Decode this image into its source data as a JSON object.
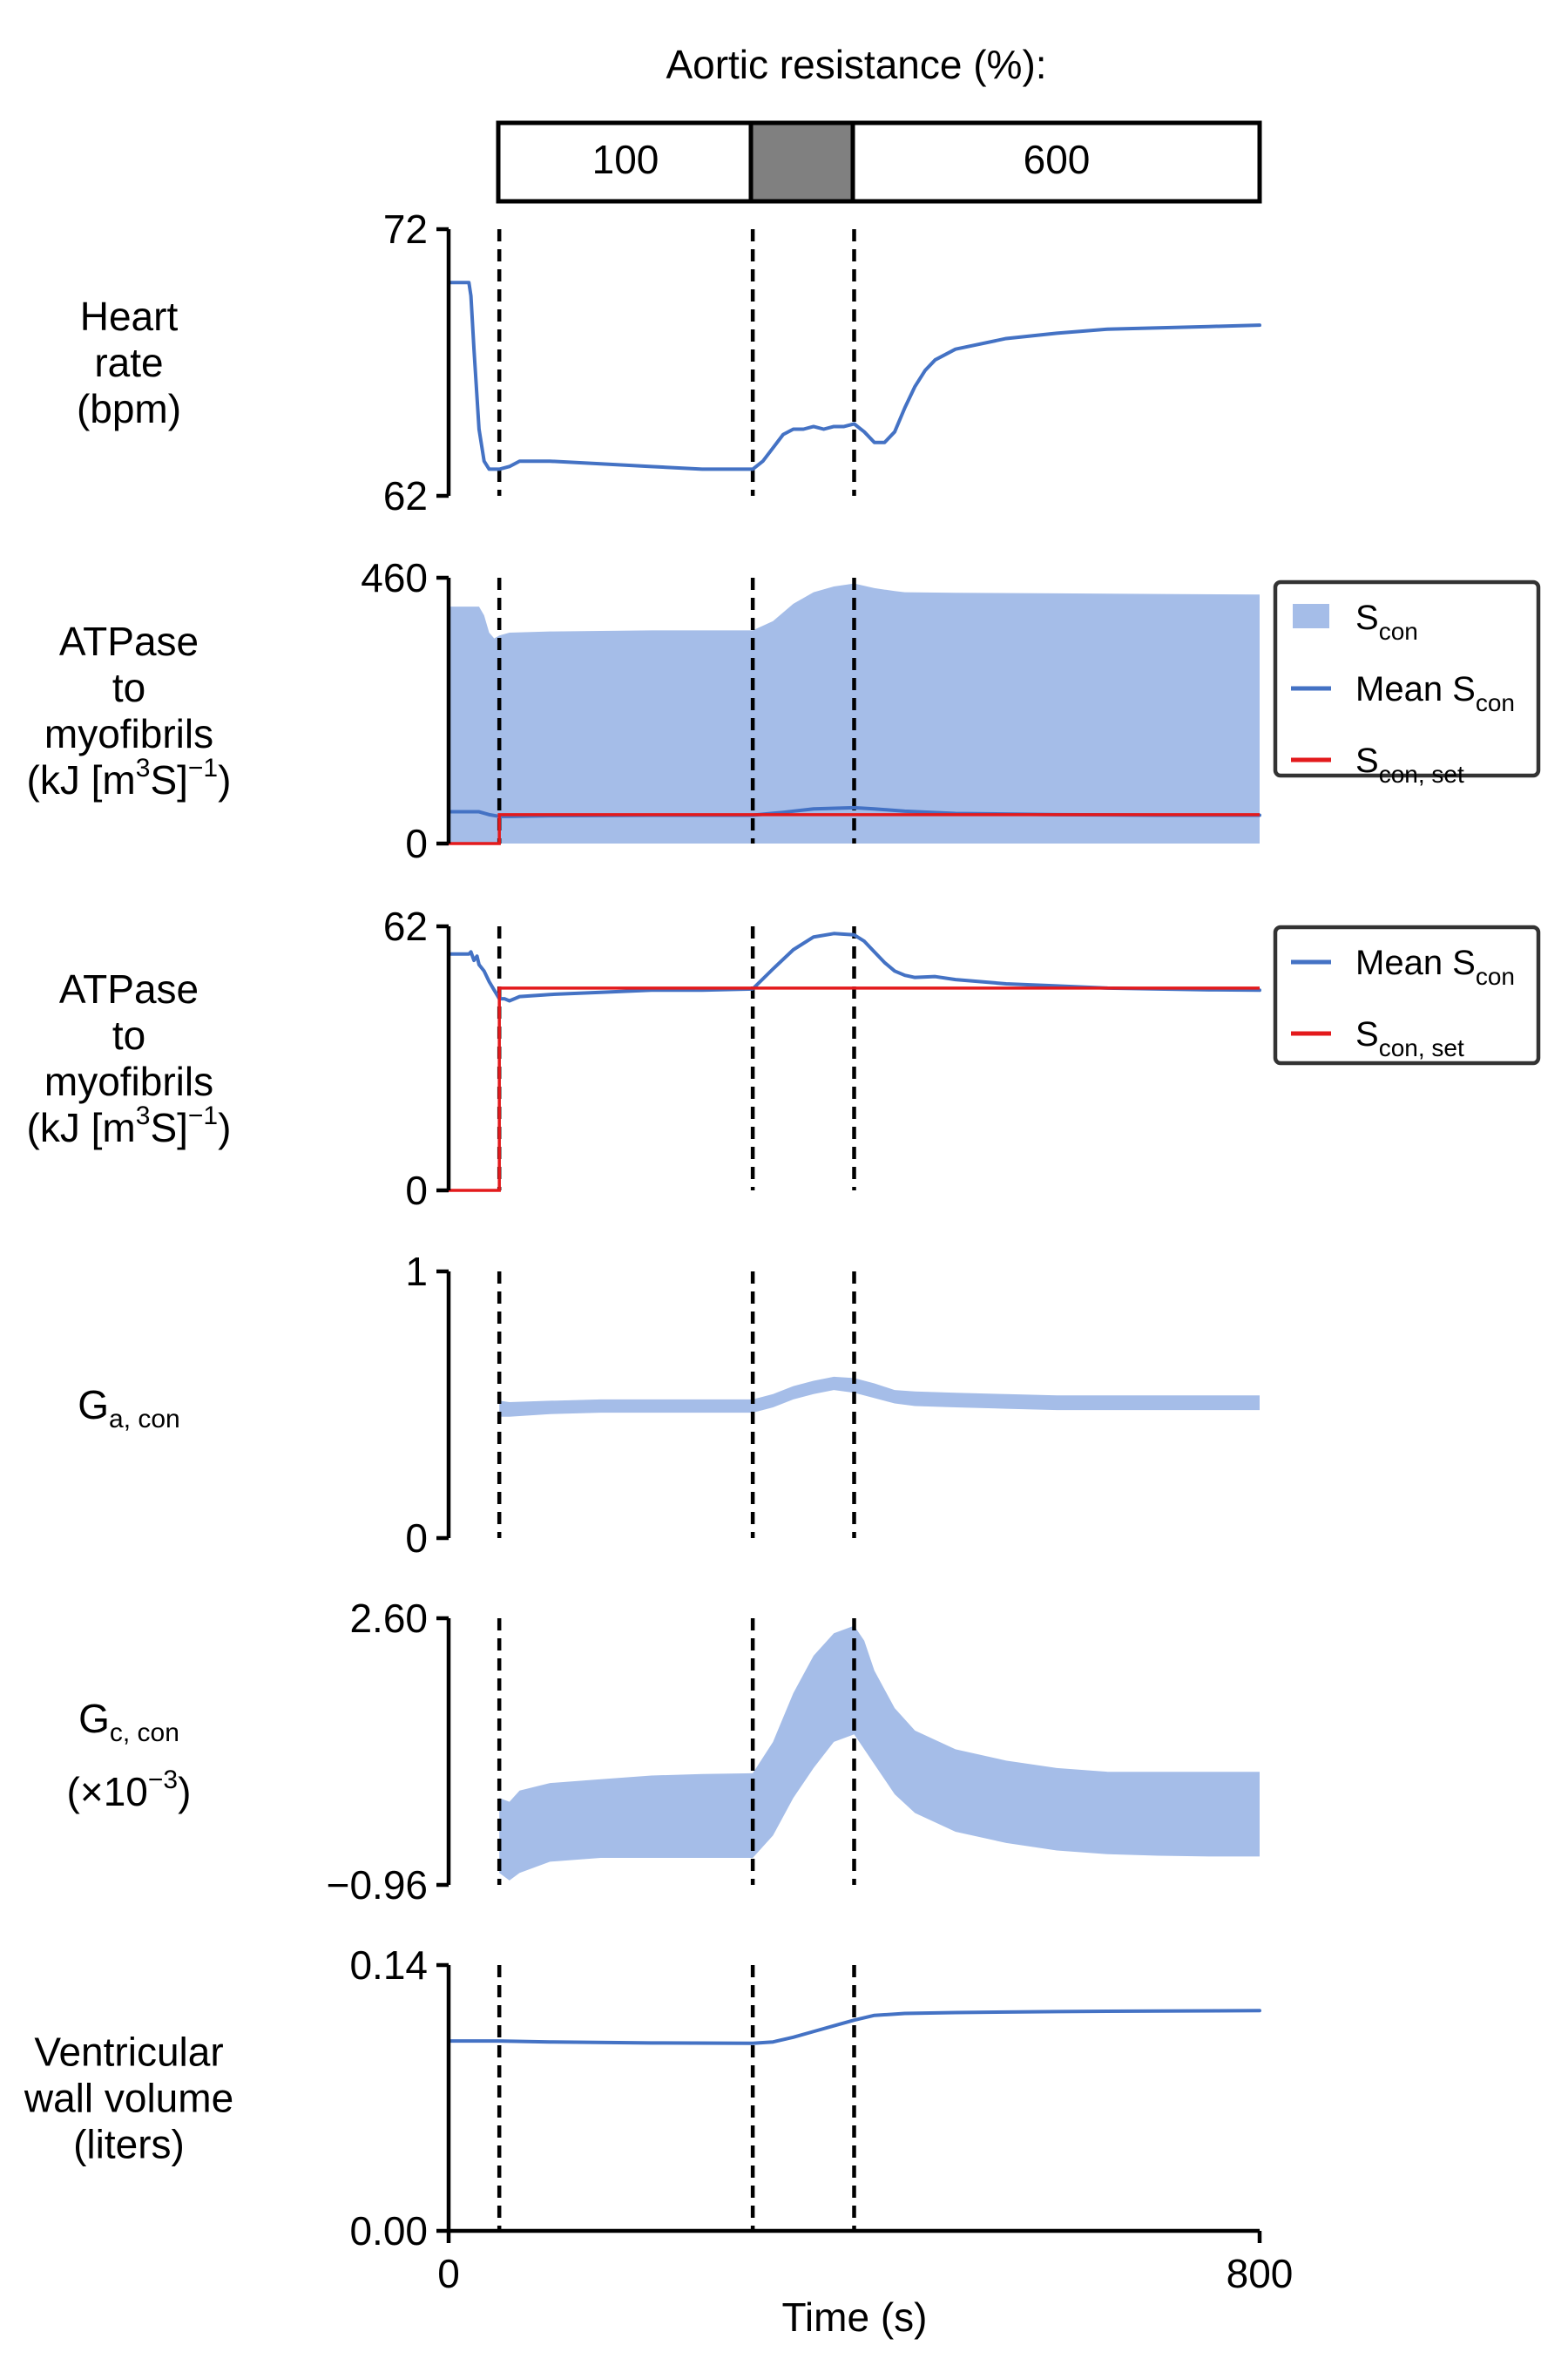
{
  "header": {
    "title": "Aortic resistance (%):",
    "segments": [
      "100",
      "",
      "600"
    ]
  },
  "x_axis": {
    "label": "Time (s)",
    "min": 0,
    "max": 800,
    "ticks": [
      "0",
      "800"
    ]
  },
  "events": [
    50,
    300,
    400
  ],
  "legend_items": {
    "band": "S",
    "band_sub": "con",
    "mean": "Mean S",
    "mean_sub": "con",
    "set": "S",
    "set_sub": "con, set"
  },
  "colors": {
    "band": "#a5bde8",
    "line": "#4472c4",
    "set": "#e31a1c",
    "event": "#000000"
  },
  "chart_data": [
    {
      "type": "line",
      "ylabel": [
        "Heart",
        "rate",
        "(bpm)"
      ],
      "ylim": [
        62,
        72
      ],
      "yticks": [
        "72",
        "62"
      ],
      "series": [
        {
          "kind": "line",
          "x": [
            0,
            20,
            22,
            25,
            30,
            35,
            40,
            50,
            60,
            70,
            100,
            150,
            200,
            250,
            300,
            310,
            320,
            330,
            340,
            350,
            360,
            370,
            380,
            390,
            400,
            410,
            420,
            430,
            440,
            450,
            460,
            470,
            480,
            500,
            550,
            600,
            650,
            700,
            750,
            800
          ],
          "y": [
            70.0,
            70.0,
            69.5,
            67.5,
            64.5,
            63.3,
            63.0,
            63.0,
            63.1,
            63.3,
            63.3,
            63.2,
            63.1,
            63.0,
            63.0,
            63.3,
            63.8,
            64.3,
            64.5,
            64.5,
            64.6,
            64.5,
            64.6,
            64.6,
            64.7,
            64.4,
            64.0,
            64.0,
            64.4,
            65.3,
            66.1,
            66.7,
            67.1,
            67.5,
            67.9,
            68.1,
            68.25,
            68.3,
            68.35,
            68.4
          ]
        }
      ]
    },
    {
      "type": "area",
      "ylabel": [
        "ATPase",
        "to",
        "myofibrils",
        "(kJ [m3S]−1)"
      ],
      "ylim": [
        0,
        460
      ],
      "yticks": [
        "460",
        "0"
      ],
      "series": [
        {
          "name": "S_con",
          "kind": "band",
          "x": [
            0,
            30,
            35,
            40,
            45,
            50,
            60,
            100,
            150,
            200,
            250,
            300,
            320,
            340,
            360,
            380,
            400,
            420,
            440,
            450,
            500,
            600,
            700,
            800
          ],
          "upper": [
            410,
            410,
            395,
            365,
            355,
            360,
            365,
            367,
            368,
            369,
            369,
            369,
            385,
            415,
            435,
            445,
            450,
            442,
            437,
            435,
            434,
            433,
            432,
            431
          ],
          "lower": [
            0,
            0,
            0,
            0,
            0,
            0,
            0,
            0,
            0,
            0,
            0,
            0,
            0,
            0,
            0,
            0,
            0,
            0,
            0,
            0,
            0,
            0,
            0,
            0
          ]
        },
        {
          "name": "Mean S_con",
          "kind": "line",
          "x": [
            0,
            30,
            40,
            50,
            60,
            100,
            200,
            300,
            330,
            360,
            400,
            420,
            450,
            500,
            600,
            700,
            800
          ],
          "y": [
            55,
            55,
            50,
            47,
            47,
            48,
            49,
            49,
            54,
            60,
            62,
            60,
            56,
            52,
            50,
            49,
            49
          ]
        },
        {
          "name": "S_con,set",
          "kind": "step",
          "x": [
            0,
            50,
            50,
            800
          ],
          "y": [
            0,
            0,
            50,
            50
          ]
        }
      ]
    },
    {
      "type": "line",
      "ylabel": [
        "ATPase",
        "to",
        "myofibrils",
        "(kJ [m3S]−1)"
      ],
      "ylim": [
        0,
        62
      ],
      "yticks": [
        "62",
        "0"
      ],
      "series": [
        {
          "name": "Mean S_con",
          "kind": "line",
          "width": 4,
          "x": [
            0,
            15,
            20,
            22,
            25,
            28,
            30,
            35,
            40,
            45,
            50,
            55,
            60,
            70,
            100,
            150,
            200,
            250,
            300,
            320,
            340,
            360,
            380,
            400,
            410,
            420,
            430,
            440,
            450,
            460,
            480,
            500,
            550,
            600,
            650,
            700,
            750,
            800
          ],
          "y": [
            55.5,
            55.5,
            55.5,
            56,
            54,
            55,
            53,
            51.5,
            49,
            47,
            45,
            45,
            44.5,
            45.5,
            46,
            46.5,
            47,
            47,
            47.3,
            52,
            56.5,
            59.5,
            60.3,
            60,
            58.5,
            56,
            53.5,
            51.5,
            50.5,
            50,
            50.2,
            49.5,
            48.5,
            48,
            47.5,
            47.3,
            47.1,
            47
          ]
        },
        {
          "name": "S_con,set",
          "kind": "step",
          "x": [
            0,
            50,
            50,
            800
          ],
          "y": [
            0,
            0,
            47.5,
            47.5
          ]
        }
      ]
    },
    {
      "type": "area",
      "ylabel": [
        "G",
        "a, con"
      ],
      "ylim": [
        0,
        1
      ],
      "yticks": [
        "1",
        "0"
      ],
      "series": [
        {
          "kind": "band",
          "x": [
            50,
            60,
            100,
            150,
            200,
            250,
            300,
            320,
            340,
            360,
            380,
            400,
            420,
            440,
            460,
            500,
            550,
            600,
            700,
            800
          ],
          "upper": [
            0.515,
            0.51,
            0.515,
            0.52,
            0.52,
            0.52,
            0.52,
            0.54,
            0.57,
            0.59,
            0.605,
            0.6,
            0.58,
            0.555,
            0.55,
            0.545,
            0.54,
            0.535,
            0.535,
            0.535
          ],
          "lower": [
            0.455,
            0.455,
            0.465,
            0.47,
            0.47,
            0.47,
            0.47,
            0.49,
            0.52,
            0.54,
            0.555,
            0.545,
            0.525,
            0.505,
            0.495,
            0.49,
            0.485,
            0.48,
            0.48,
            0.48
          ]
        }
      ]
    },
    {
      "type": "area",
      "ylabel": [
        "G",
        "c, con",
        "(×10−3)"
      ],
      "ylim": [
        -0.96,
        2.6
      ],
      "yticks": [
        "2.60",
        "−0.96"
      ],
      "series": [
        {
          "kind": "band",
          "x": [
            50,
            60,
            70,
            100,
            150,
            200,
            250,
            300,
            320,
            340,
            360,
            380,
            400,
            410,
            420,
            440,
            460,
            500,
            550,
            600,
            650,
            700,
            750,
            800
          ],
          "upper": [
            0.2,
            0.15,
            0.3,
            0.4,
            0.45,
            0.5,
            0.52,
            0.53,
            0.95,
            1.6,
            2.1,
            2.4,
            2.5,
            2.3,
            1.9,
            1.4,
            1.1,
            0.85,
            0.7,
            0.6,
            0.55,
            0.55,
            0.55,
            0.55
          ],
          "lower": [
            -0.8,
            -0.9,
            -0.8,
            -0.65,
            -0.6,
            -0.6,
            -0.6,
            -0.6,
            -0.3,
            0.2,
            0.6,
            0.95,
            1.05,
            0.85,
            0.65,
            0.25,
            0.0,
            -0.25,
            -0.4,
            -0.5,
            -0.55,
            -0.57,
            -0.58,
            -0.58
          ]
        }
      ]
    },
    {
      "type": "line",
      "ylabel": [
        "Ventricular",
        "wall volume",
        "(liters)"
      ],
      "ylim": [
        0,
        0.14
      ],
      "yticks": [
        "0.14",
        "0.00"
      ],
      "series": [
        {
          "kind": "line",
          "x": [
            0,
            50,
            100,
            200,
            300,
            320,
            340,
            360,
            380,
            400,
            420,
            450,
            500,
            600,
            700,
            800
          ],
          "y": [
            0.1,
            0.1,
            0.0995,
            0.099,
            0.0988,
            0.0995,
            0.102,
            0.105,
            0.108,
            0.111,
            0.1135,
            0.1145,
            0.115,
            0.1155,
            0.1158,
            0.116
          ]
        }
      ]
    }
  ]
}
